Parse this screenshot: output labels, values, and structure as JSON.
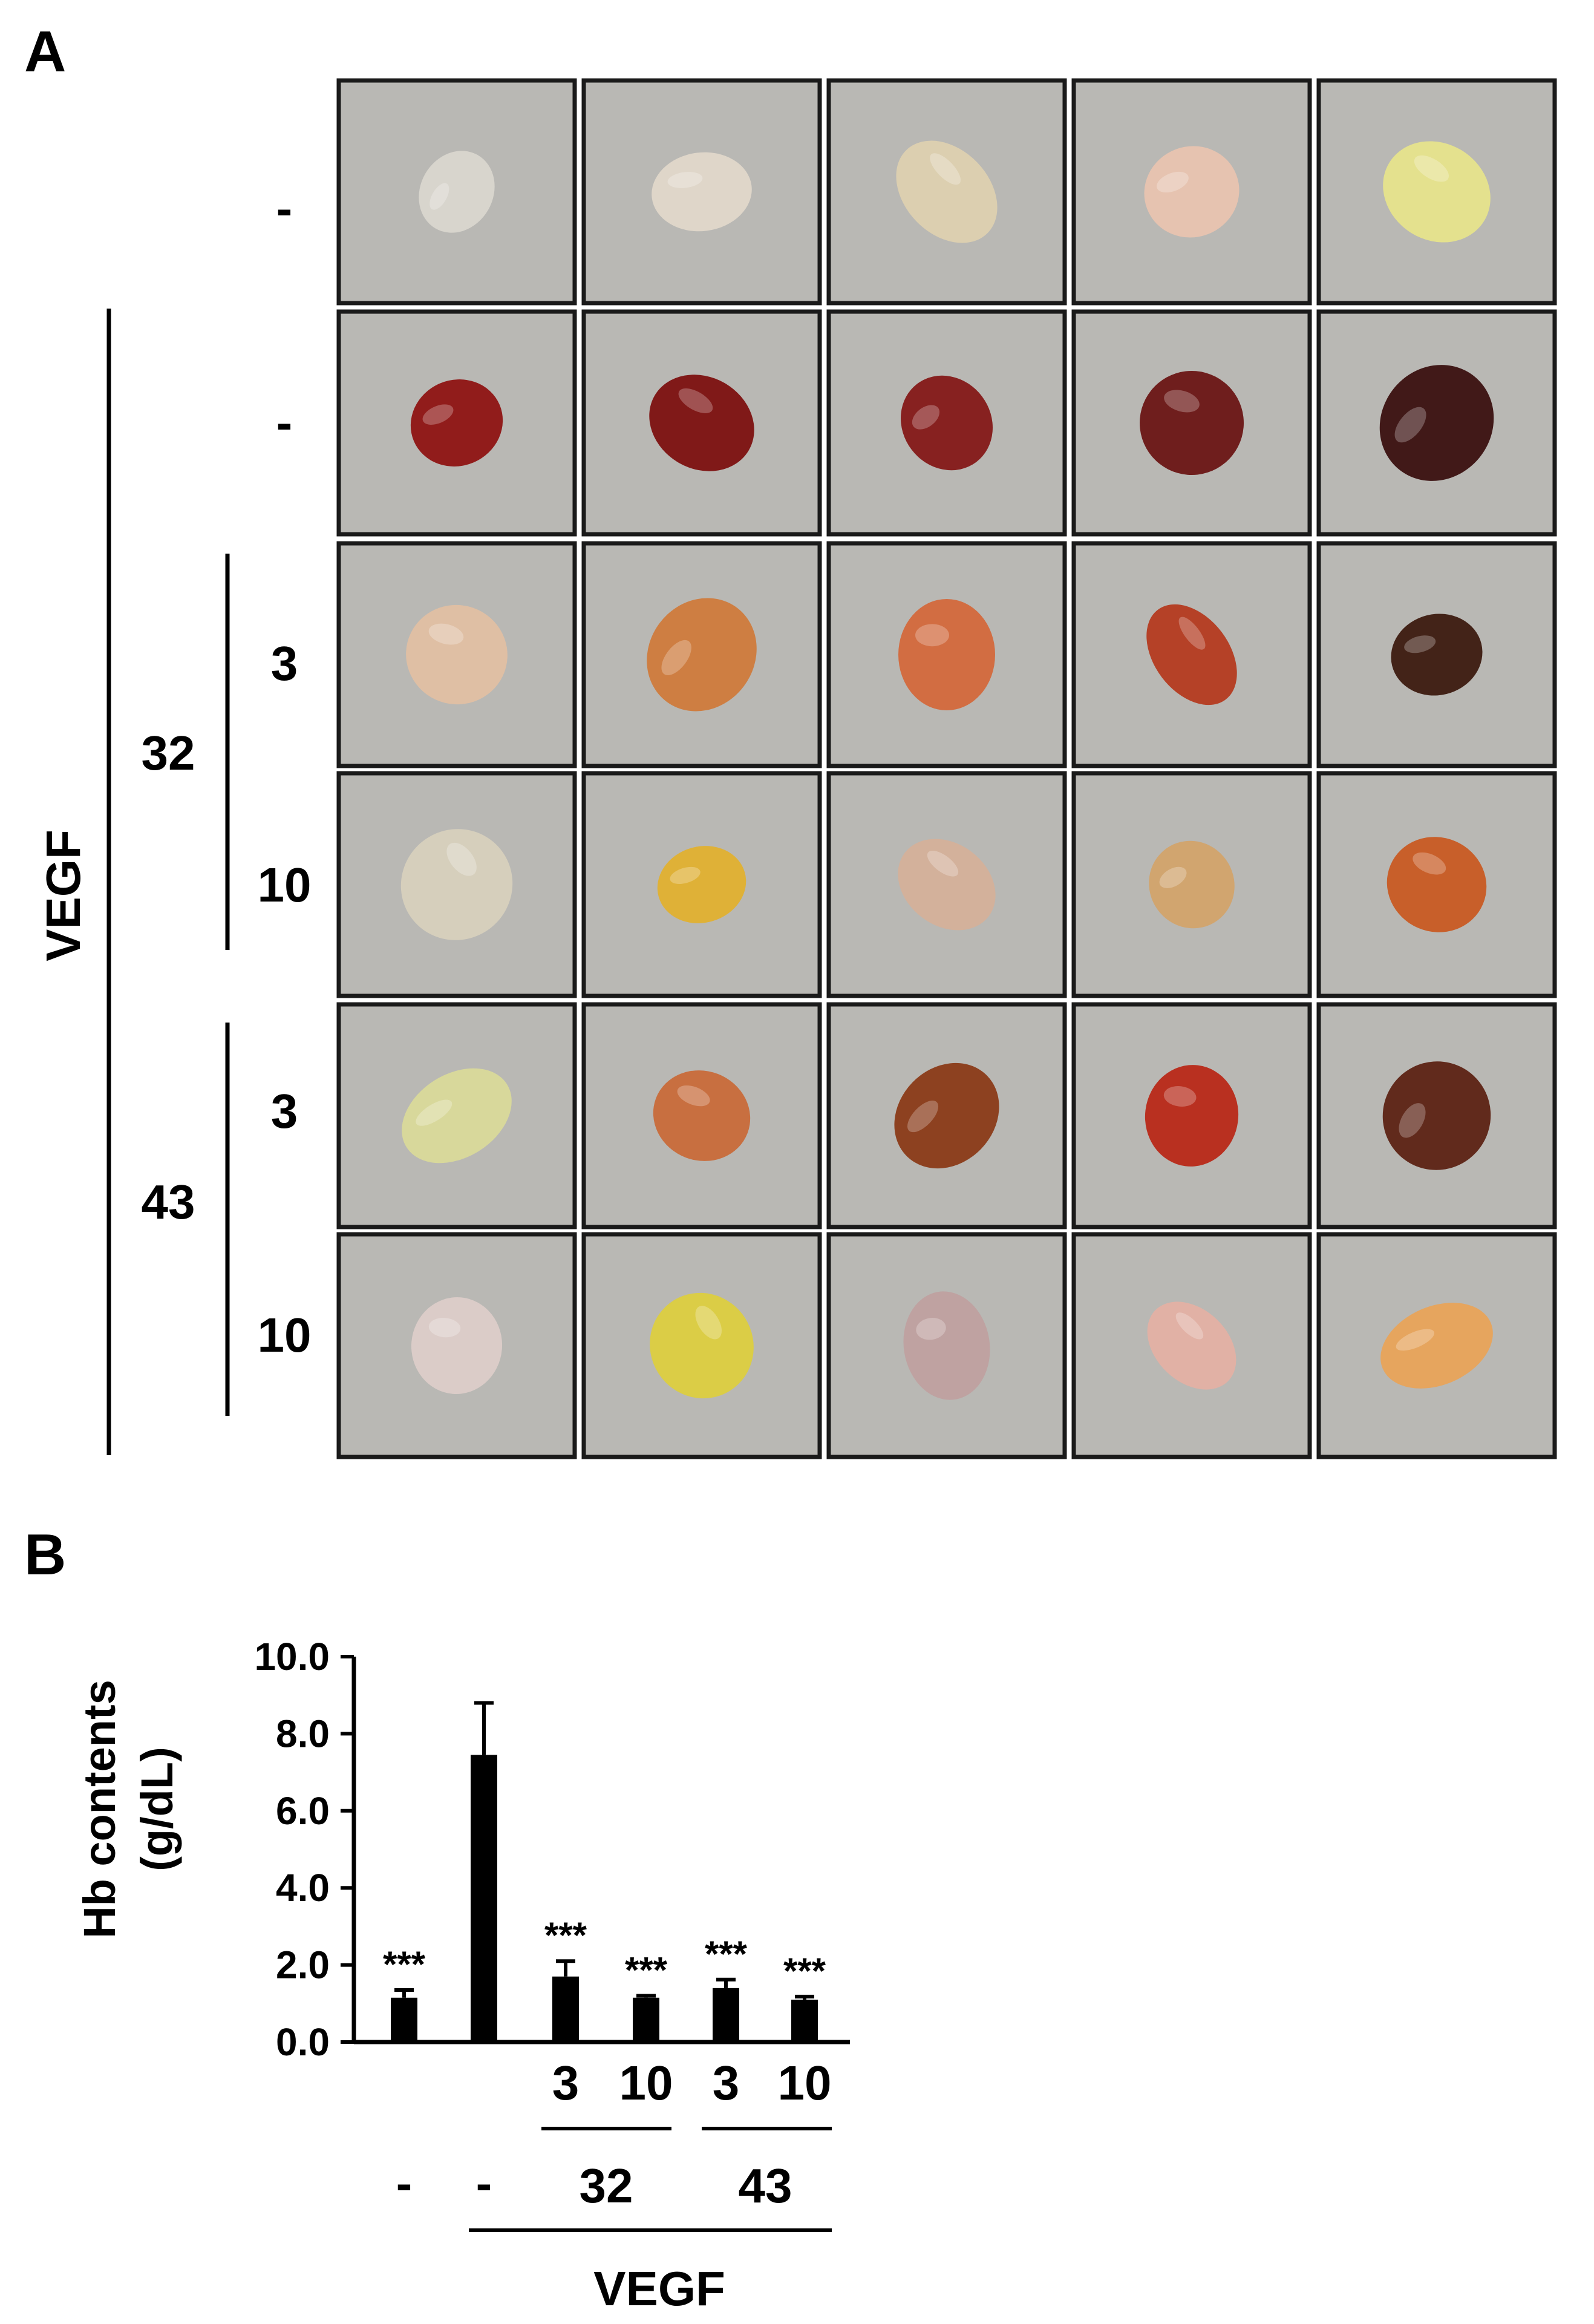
{
  "panelA": {
    "letter": "A",
    "row_labels": [
      "-",
      "-",
      "3",
      "10",
      "3",
      "10"
    ],
    "group_labels": {
      "vegf": "VEGF",
      "c32": "32",
      "c43": "43"
    },
    "samples": [
      [
        "#d9d6cf",
        "#e0d7ca",
        "#ddd0b0",
        "#e8c3b0",
        "#e6e38c"
      ],
      [
        "#8e1313",
        "#7c1010",
        "#841818",
        "#6a1515",
        "#3a1010"
      ],
      [
        "#e0bfa3",
        "#cf7a3c",
        "#d3683c",
        "#b43a20",
        "#3c1a10"
      ],
      [
        "#d7d0bd",
        "#e0b030",
        "#d4b09a",
        "#d2a36b",
        "#c85a23"
      ],
      [
        "#d9d99a",
        "#c86a3a",
        "#8a3a18",
        "#b82818",
        "#5c2214"
      ],
      [
        "#dcccc9",
        "#dccd40",
        "#bfa0a0",
        "#e3b0a4",
        "#e8a35a"
      ]
    ]
  },
  "panelB": {
    "letter": "B",
    "chart_data": {
      "type": "bar",
      "title": "",
      "ylabel_line1": "Hb contents",
      "ylabel_line2": "(g/dL)",
      "ylim": [
        0,
        10
      ],
      "yticks": [
        {
          "value": 0,
          "label": "0.0"
        },
        {
          "value": 2,
          "label": "2.0"
        },
        {
          "value": 4,
          "label": "4.0"
        },
        {
          "value": 6,
          "label": "6.0"
        },
        {
          "value": 8,
          "label": "8.0"
        },
        {
          "value": 10,
          "label": "10.0"
        }
      ],
      "categories": [
        "-",
        "-",
        "3",
        "10",
        "3",
        "10"
      ],
      "values": [
        1.15,
        7.45,
        1.7,
        1.15,
        1.4,
        1.1
      ],
      "errors": [
        0.2,
        1.35,
        0.4,
        0.05,
        0.22,
        0.08
      ],
      "significance": [
        "***",
        "",
        "***",
        "***",
        "***",
        "***"
      ],
      "group_labels": {
        "c32": "32",
        "c43": "43",
        "vegf": "VEGF"
      }
    }
  }
}
